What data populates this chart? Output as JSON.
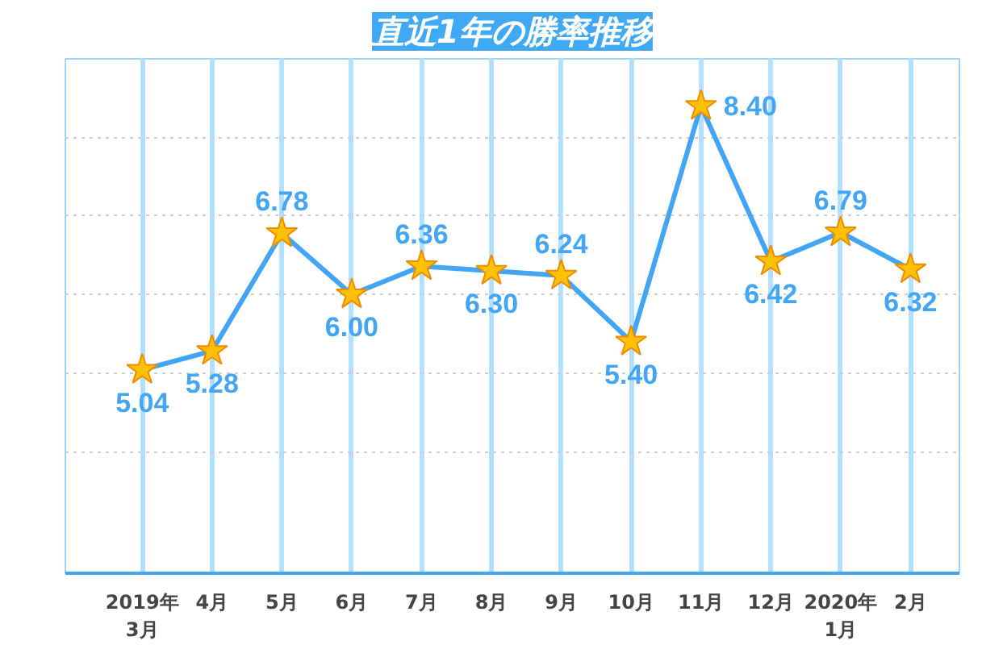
{
  "chart_data": {
    "type": "line",
    "title": "直近1年の勝率推移",
    "categories": [
      "2019年\n3月",
      "4月",
      "5月",
      "6月",
      "7月",
      "8月",
      "9月",
      "10月",
      "11月",
      "12月",
      "2020年\n1月",
      "2月"
    ],
    "series": [
      {
        "color": "#42a5f5",
        "values": [
          5.04,
          5.28,
          6.78,
          6.0,
          6.36,
          6.3,
          6.24,
          5.4,
          8.4,
          6.42,
          6.79,
          6.32
        ],
        "value_labels": [
          "5.04",
          "5.28",
          "6.78",
          "6.00",
          "6.36",
          "6.30",
          "6.24",
          "5.40",
          "8.40",
          "6.42",
          "6.79",
          "6.32"
        ]
      }
    ],
    "ylim": [
      2.45,
      9.0
    ],
    "yticks": [
      {
        "value": 4,
        "label": null
      },
      {
        "value": 5,
        "label": null
      },
      {
        "value": 6,
        "label": null
      },
      {
        "value": 7,
        "label": null
      },
      {
        "value": 8,
        "label": null
      }
    ],
    "tick_labels": "x",
    "grid": true,
    "marker": "star",
    "line_style": "solid"
  }
}
